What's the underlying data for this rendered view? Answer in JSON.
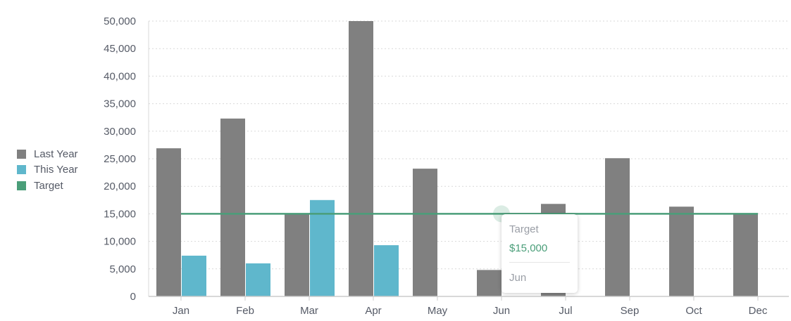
{
  "chart_data": {
    "type": "bar",
    "categories": [
      "Jan",
      "Feb",
      "Mar",
      "Apr",
      "May",
      "Jun",
      "Jul",
      "Sep",
      "Oct",
      "Dec"
    ],
    "series": [
      {
        "name": "Last Year",
        "type": "bar",
        "color": "#808080",
        "values": [
          26900,
          32300,
          15100,
          50000,
          23200,
          4800,
          16800,
          25100,
          16300,
          15000
        ]
      },
      {
        "name": "This Year",
        "type": "bar",
        "color": "#5fb7cc",
        "values": [
          7400,
          6000,
          17500,
          9300,
          null,
          null,
          null,
          null,
          null,
          null
        ]
      },
      {
        "name": "Target",
        "type": "line",
        "color": "#4a9e79",
        "values": [
          15000,
          15000,
          15000,
          15000,
          15000,
          15000,
          15000,
          15000,
          15000,
          15000
        ]
      }
    ],
    "y_ticks": [
      "0",
      "5,000",
      "10,000",
      "15,000",
      "20,000",
      "25,000",
      "30,000",
      "35,000",
      "40,000",
      "45,000",
      "50,000"
    ],
    "ylim": [
      0,
      50000
    ],
    "grid": true,
    "legend_position": "left"
  },
  "legend": [
    {
      "label": "Last Year",
      "color": "#808080"
    },
    {
      "label": "This Year",
      "color": "#5fb7cc"
    },
    {
      "label": "Target",
      "color": "#4a9e79"
    }
  ],
  "tooltip": {
    "series": "Target",
    "value": "$15,000",
    "category": "Jun"
  }
}
